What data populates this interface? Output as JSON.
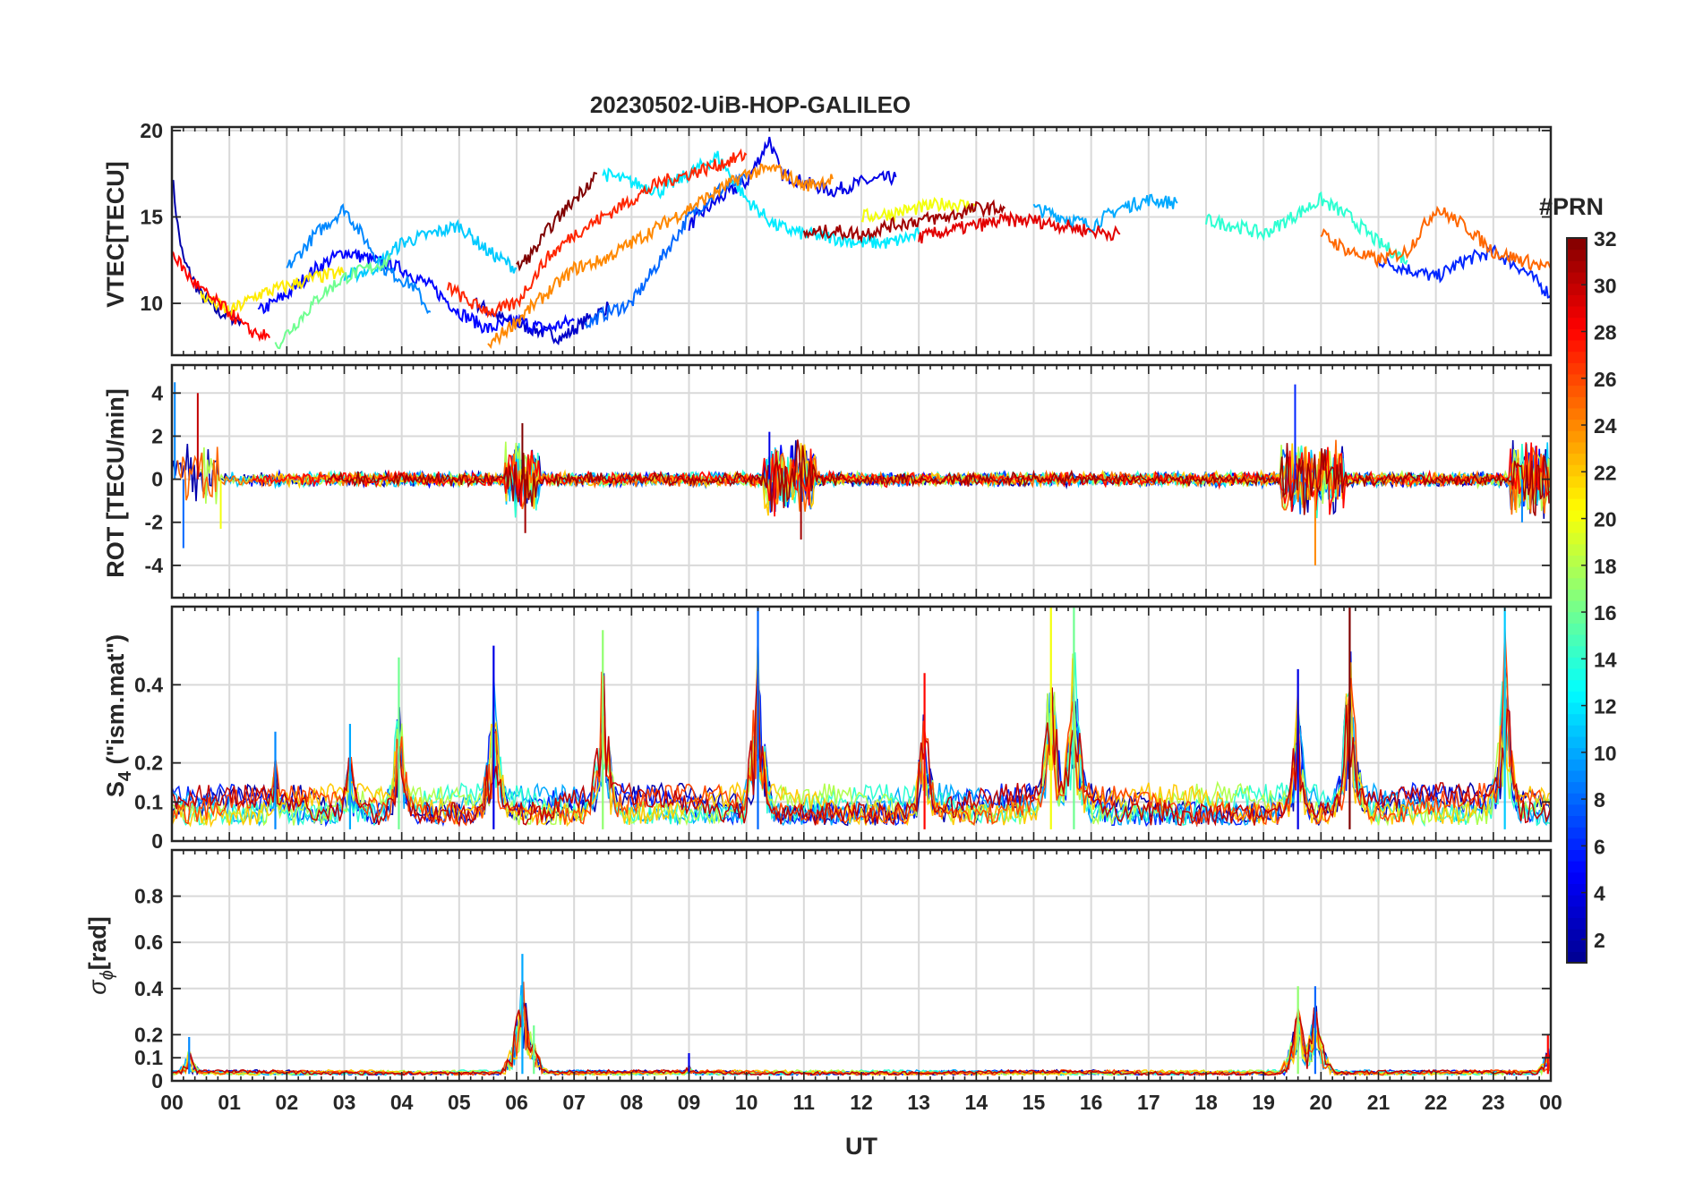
{
  "colors": {
    "background": "#ffffff",
    "axis": "#262626",
    "grid": "#d9d9d9",
    "colormap": [
      "#00008f",
      "#0000ff",
      "#0080ff",
      "#00ffff",
      "#80ff80",
      "#ffff00",
      "#ff8000",
      "#ff0000",
      "#800000"
    ]
  },
  "chart_data": [
    {
      "type": "line",
      "panel": "vtec",
      "title": "20230502-UiB-HOP-GALILEO",
      "ylabel": "VTEC[TECU]",
      "ylim": [
        7,
        20.2
      ],
      "yticks": [
        10,
        15,
        20
      ],
      "ytick_labels": [
        "10",
        "15",
        "20"
      ],
      "grid": true,
      "series": [
        {
          "prn": 2,
          "x": [
            0.0,
            0.1,
            0.2,
            0.5,
            0.8,
            1.2
          ],
          "y": [
            17.5,
            14.5,
            12.5,
            10.5,
            9.5,
            9.0
          ]
        },
        {
          "prn": 3,
          "x": [
            5.3,
            5.8,
            6.3,
            6.8,
            7.2,
            7.6
          ],
          "y": [
            10.0,
            9.0,
            8.5,
            8.0,
            9.0,
            9.8
          ]
        },
        {
          "prn": 4,
          "x": [
            9.0,
            9.5,
            10.0,
            10.4,
            10.6,
            11.0,
            11.5,
            12.0,
            12.6
          ],
          "y": [
            14.5,
            16.0,
            17.0,
            19.5,
            17.5,
            17.0,
            16.5,
            17.0,
            17.3
          ]
        },
        {
          "prn": 5,
          "x": [
            1.5,
            2.0,
            2.5,
            3.0,
            3.5,
            4.0,
            4.5,
            5.0,
            5.5,
            6.0,
            6.5,
            7.0
          ],
          "y": [
            9.5,
            10.5,
            12.0,
            13.0,
            12.5,
            12.0,
            11.0,
            9.5,
            8.5,
            9.0,
            8.5,
            9.0
          ]
        },
        {
          "prn": 6,
          "x": [
            21.0,
            21.5,
            22.0,
            22.5,
            23.0,
            23.5,
            24.0
          ],
          "y": [
            12.5,
            12.0,
            11.5,
            12.5,
            13.0,
            12.0,
            10.5
          ]
        },
        {
          "prn": 8,
          "x": [
            7.2,
            7.6,
            8.0,
            8.5,
            9.0,
            9.5,
            10.0
          ],
          "y": [
            8.8,
            9.5,
            10.0,
            12.5,
            15.0,
            16.5,
            17.2
          ]
        },
        {
          "prn": 9,
          "x": [
            2.0,
            2.5,
            3.0,
            3.3,
            3.7,
            4.2,
            4.5
          ],
          "y": [
            12.0,
            14.0,
            15.5,
            14.0,
            12.0,
            11.0,
            9.5
          ]
        },
        {
          "prn": 10,
          "x": [
            15.0,
            15.5,
            16.0,
            16.5,
            17.0,
            17.5
          ],
          "y": [
            15.5,
            15.0,
            14.5,
            15.5,
            16.0,
            15.8
          ]
        },
        {
          "prn": 11,
          "x": [
            3.0,
            3.5,
            4.0,
            4.5,
            5.0,
            5.5,
            6.0
          ],
          "y": [
            11.5,
            12.0,
            13.5,
            14.0,
            14.5,
            13.0,
            12.0
          ]
        },
        {
          "prn": 12,
          "x": [
            7.5,
            8.0,
            8.5,
            9.0,
            9.5,
            10.0,
            10.5,
            11.0,
            11.5,
            12.0,
            12.5,
            13.0
          ],
          "y": [
            17.5,
            17.0,
            16.5,
            17.5,
            18.5,
            16.0,
            14.5,
            14.0,
            13.8,
            13.5,
            13.5,
            14.0
          ]
        },
        {
          "prn": 14,
          "x": [
            18.0,
            18.5,
            19.0,
            19.5,
            20.0,
            20.5,
            21.0,
            21.5
          ],
          "y": [
            14.8,
            14.5,
            14.0,
            15.0,
            16.0,
            15.0,
            13.5,
            12.5
          ]
        },
        {
          "prn": 16,
          "x": [
            1.8,
            2.2,
            2.6,
            3.0,
            3.4,
            3.8
          ],
          "y": [
            7.5,
            9.0,
            10.5,
            11.5,
            12.0,
            12.5
          ]
        },
        {
          "prn": 20,
          "x": [
            12.0,
            12.5,
            13.0,
            13.5,
            14.0
          ],
          "y": [
            15.0,
            15.2,
            15.5,
            15.8,
            15.6
          ]
        },
        {
          "prn": 21,
          "x": [
            0.5,
            1.0,
            1.5,
            2.0,
            2.5,
            3.0
          ],
          "y": [
            10.5,
            9.5,
            10.5,
            11.0,
            11.5,
            11.8
          ]
        },
        {
          "prn": 24,
          "x": [
            5.5,
            6.0,
            6.5,
            7.0,
            7.5,
            8.0,
            8.5,
            9.0,
            9.5,
            10.0,
            10.5,
            11.0,
            11.5
          ],
          "y": [
            7.5,
            9.0,
            10.5,
            12.0,
            12.5,
            13.5,
            14.5,
            15.5,
            16.5,
            17.5,
            17.8,
            16.8,
            17.2
          ]
        },
        {
          "prn": 25,
          "x": [
            20.0,
            20.5,
            21.0,
            21.5,
            22.0,
            22.5,
            23.0,
            23.5,
            24.0
          ],
          "y": [
            14.0,
            13.0,
            12.5,
            13.0,
            15.5,
            14.5,
            13.0,
            12.5,
            12.0
          ]
        },
        {
          "prn": 27,
          "x": [
            4.8,
            5.2,
            5.6,
            6.0,
            6.5,
            7.0,
            7.5,
            8.0,
            8.5,
            9.0,
            9.5,
            10.0
          ],
          "y": [
            11.0,
            10.0,
            9.5,
            10.0,
            12.5,
            14.0,
            15.0,
            16.0,
            17.0,
            17.5,
            18.0,
            18.6
          ]
        },
        {
          "prn": 28,
          "x": [
            0.0,
            0.3,
            0.6,
            1.0,
            1.3,
            1.7
          ],
          "y": [
            13.0,
            11.5,
            10.5,
            9.5,
            8.5,
            8.0
          ]
        },
        {
          "prn": 29,
          "x": [
            13.0,
            13.5,
            14.0,
            14.5,
            15.0,
            15.5,
            16.0,
            16.5
          ],
          "y": [
            13.8,
            14.2,
            14.5,
            14.8,
            14.8,
            14.5,
            14.2,
            14.0
          ]
        },
        {
          "prn": 31,
          "x": [
            11.0,
            11.5,
            12.0,
            12.5,
            13.0,
            13.5,
            14.0,
            14.5
          ],
          "y": [
            14.0,
            14.2,
            14.0,
            14.5,
            14.8,
            15.0,
            15.5,
            15.5
          ]
        },
        {
          "prn": 32,
          "x": [
            6.0,
            6.3,
            6.6,
            7.0,
            7.4
          ],
          "y": [
            12.0,
            13.0,
            14.5,
            16.0,
            17.5
          ]
        }
      ]
    },
    {
      "type": "line",
      "panel": "rot",
      "ylabel": "ROT [TECU/min]",
      "ylim": [
        -5.5,
        5.3
      ],
      "yticks": [
        -4,
        -2,
        0,
        2,
        4
      ],
      "ytick_labels": [
        "-4",
        "-2",
        "0",
        "2",
        "4"
      ],
      "grid": true,
      "baseline": 0,
      "noisy_intervals_hours": [
        [
          0.0,
          0.8
        ],
        [
          5.8,
          6.4
        ],
        [
          10.3,
          11.2
        ],
        [
          19.3,
          20.4
        ],
        [
          23.3,
          24.0
        ]
      ],
      "extremes": [
        {
          "x": 0.05,
          "y": 4.5
        },
        {
          "x": 0.2,
          "y": -3.2
        },
        {
          "x": 0.45,
          "y": 4.0
        },
        {
          "x": 0.85,
          "y": -2.3
        },
        {
          "x": 6.1,
          "y": 2.6
        },
        {
          "x": 6.15,
          "y": -2.5
        },
        {
          "x": 10.4,
          "y": 2.2
        },
        {
          "x": 10.95,
          "y": -2.8
        },
        {
          "x": 19.55,
          "y": 4.4
        },
        {
          "x": 19.9,
          "y": -4.0
        },
        {
          "x": 23.5,
          "y": -2.0
        }
      ]
    },
    {
      "type": "line",
      "panel": "s4",
      "ylim": [
        0,
        0.6
      ],
      "yticks": [
        0,
        0.1,
        0.2,
        0.4
      ],
      "ytick_labels": [
        "0",
        "0.1",
        "0.2",
        "0.4"
      ],
      "grid": true,
      "peaks": [
        {
          "x": 1.8,
          "y": 0.28
        },
        {
          "x": 3.1,
          "y": 0.3
        },
        {
          "x": 3.95,
          "y": 0.47
        },
        {
          "x": 5.6,
          "y": 0.5
        },
        {
          "x": 7.5,
          "y": 0.54
        },
        {
          "x": 10.2,
          "y": 0.6
        },
        {
          "x": 13.1,
          "y": 0.43
        },
        {
          "x": 15.3,
          "y": 0.6
        },
        {
          "x": 15.7,
          "y": 0.6
        },
        {
          "x": 19.6,
          "y": 0.44
        },
        {
          "x": 20.5,
          "y": 0.6
        },
        {
          "x": 23.2,
          "y": 0.6
        }
      ]
    },
    {
      "type": "line",
      "panel": "sigma_phi",
      "ylim": [
        0,
        1.0
      ],
      "yticks": [
        0,
        0.1,
        0.2,
        0.4,
        0.6,
        0.8
      ],
      "ytick_labels": [
        "0",
        "0.1",
        "0.2",
        "0.4",
        "0.6",
        "0.8"
      ],
      "grid": true,
      "peaks": [
        {
          "x": 0.3,
          "y": 0.19
        },
        {
          "x": 6.1,
          "y": 0.55
        },
        {
          "x": 6.3,
          "y": 0.24
        },
        {
          "x": 9.0,
          "y": 0.12
        },
        {
          "x": 19.6,
          "y": 0.41
        },
        {
          "x": 19.9,
          "y": 0.41
        },
        {
          "x": 23.95,
          "y": 0.2
        }
      ]
    }
  ],
  "labels": {
    "title": "20230502-UiB-HOP-GALILEO",
    "vtec_ylabel": "VTEC[TECU]",
    "rot_ylabel": "ROT [TECU/min]",
    "s4_ylabel_main": "S",
    "s4_ylabel_sub": "4",
    "s4_ylabel_rest": " (\"ism.mat\")",
    "sigma_ylabel_main": "σ",
    "sigma_ylabel_sub": "ϕ",
    "sigma_ylabel_rest": "[rad]",
    "xlabel": "UT",
    "colorbar_title": "#PRN"
  },
  "xaxis": {
    "xlim": [
      0,
      24
    ],
    "ticks": [
      0,
      1,
      2,
      3,
      4,
      5,
      6,
      7,
      8,
      9,
      10,
      11,
      12,
      13,
      14,
      15,
      16,
      17,
      18,
      19,
      20,
      21,
      22,
      23,
      24
    ],
    "tick_labels": [
      "00",
      "01",
      "02",
      "03",
      "04",
      "05",
      "06",
      "07",
      "08",
      "09",
      "10",
      "11",
      "12",
      "13",
      "14",
      "15",
      "16",
      "17",
      "18",
      "19",
      "20",
      "21",
      "22",
      "23",
      "00"
    ]
  },
  "colorbar": {
    "title": "#PRN",
    "range": [
      1,
      32
    ],
    "ticks": [
      2,
      4,
      6,
      8,
      10,
      12,
      14,
      16,
      18,
      20,
      22,
      24,
      26,
      28,
      30,
      32
    ],
    "tick_labels": [
      "2",
      "4",
      "6",
      "8",
      "10",
      "12",
      "14",
      "16",
      "18",
      "20",
      "22",
      "24",
      "26",
      "28",
      "30",
      "32"
    ]
  }
}
